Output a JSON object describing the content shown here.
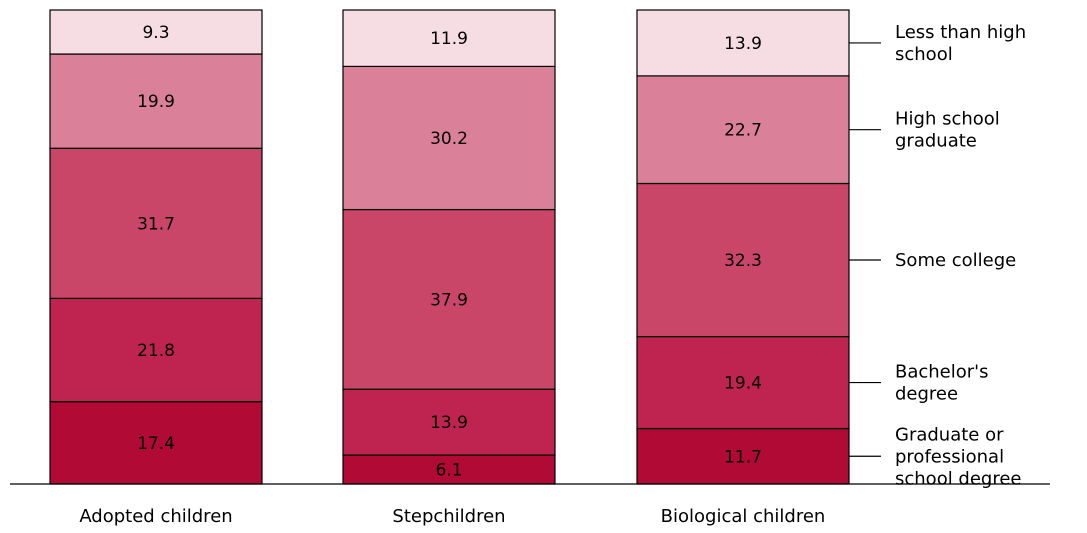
{
  "chart_data": {
    "type": "bar",
    "stacked": true,
    "categories": [
      "Adopted children",
      "Stepchildren",
      "Biological children"
    ],
    "series": [
      {
        "name": "Graduate or professional school degree",
        "values": [
          17.4,
          6.1,
          11.7
        ],
        "color": "#b00a35"
      },
      {
        "name": "Bachelor's degree",
        "values": [
          21.8,
          13.9,
          19.4
        ],
        "color": "#bf2450"
      },
      {
        "name": "Some college",
        "values": [
          31.7,
          37.9,
          32.3
        ],
        "color": "#c94668"
      },
      {
        "name": "High school graduate",
        "values": [
          19.9,
          30.2,
          22.7
        ],
        "color": "#db8099"
      },
      {
        "name": "Less than high school",
        "values": [
          9.3,
          11.9,
          13.9
        ],
        "color": "#f6dce3"
      }
    ],
    "legend_placement": "right",
    "ylim": [
      0,
      100
    ],
    "grid": false
  }
}
